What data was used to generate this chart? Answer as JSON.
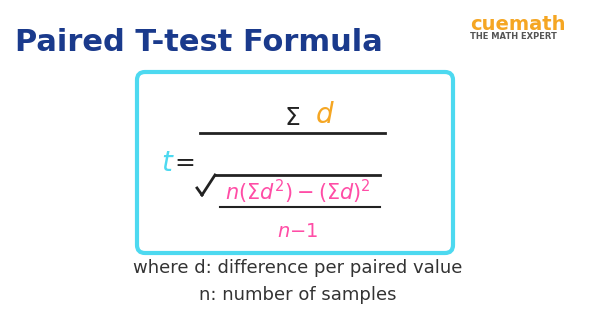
{
  "title": "Paired T-test Formula",
  "title_color": "#1a3a8c",
  "bg_color": "#ffffff",
  "box_color": "#4dd9f0",
  "t_color": "#4dd9f0",
  "sigma_d_color": "#f5a623",
  "pink_color": "#ff4da6",
  "black_color": "#222222",
  "where_text_line1": "where d: difference per paired value",
  "where_text_line2": "n: number of samples",
  "text_color": "#333333"
}
